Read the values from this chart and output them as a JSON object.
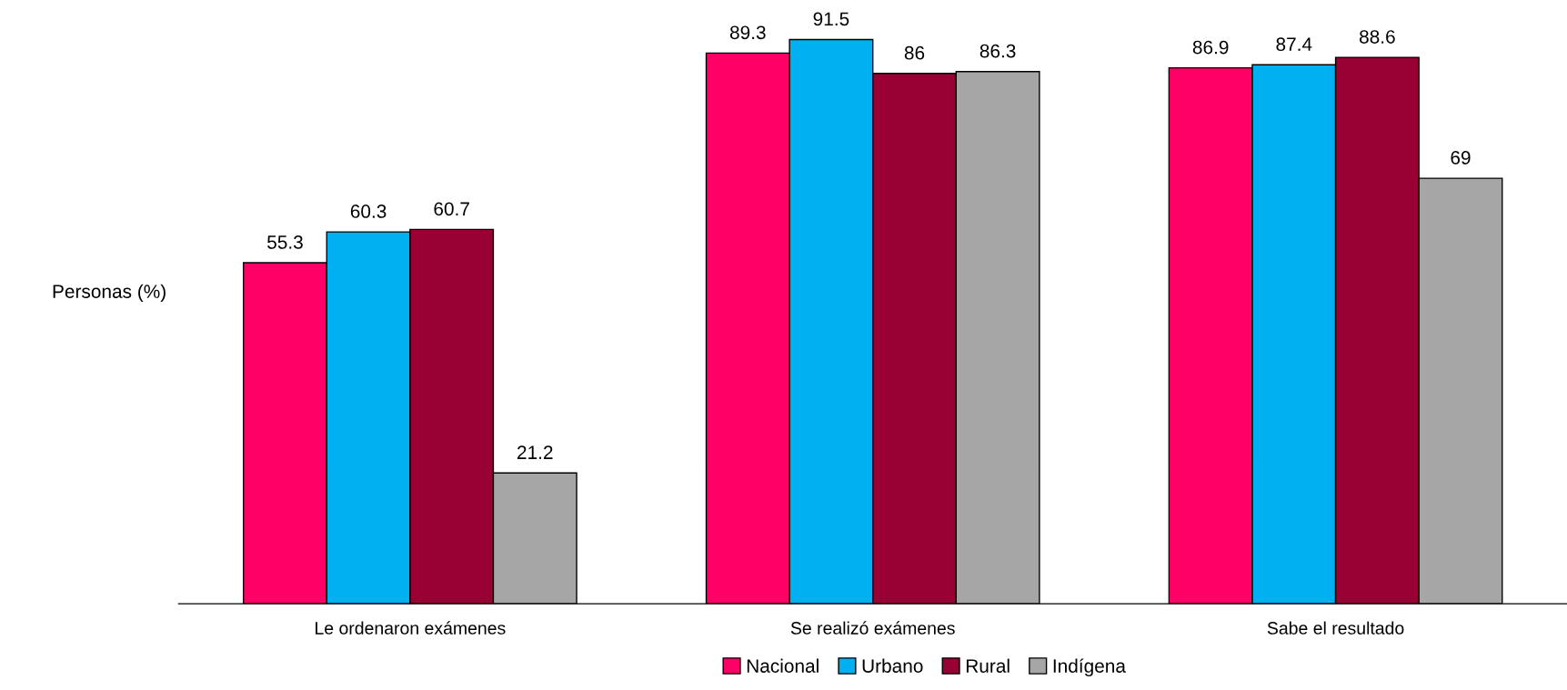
{
  "chart_data": {
    "type": "bar",
    "ylabel": "Personas (%)",
    "categories": [
      "Le ordenaron exámenes",
      "Se realizó exámenes",
      "Sabe el resultado"
    ],
    "series": [
      {
        "name": "Nacional",
        "color": "#ff0066",
        "values": [
          55.3,
          89.3,
          86.9
        ]
      },
      {
        "name": "Urbano",
        "color": "#00b0f0",
        "values": [
          60.3,
          91.5,
          87.4
        ]
      },
      {
        "name": "Rural",
        "color": "#990033",
        "values": [
          60.7,
          86,
          88.6
        ]
      },
      {
        "name": "Indígena",
        "color": "#a6a6a6",
        "values": [
          21.2,
          86.3,
          69
        ]
      }
    ],
    "tick_labels": "x",
    "data_labels": true,
    "legend": "bottom",
    "grid": false
  }
}
